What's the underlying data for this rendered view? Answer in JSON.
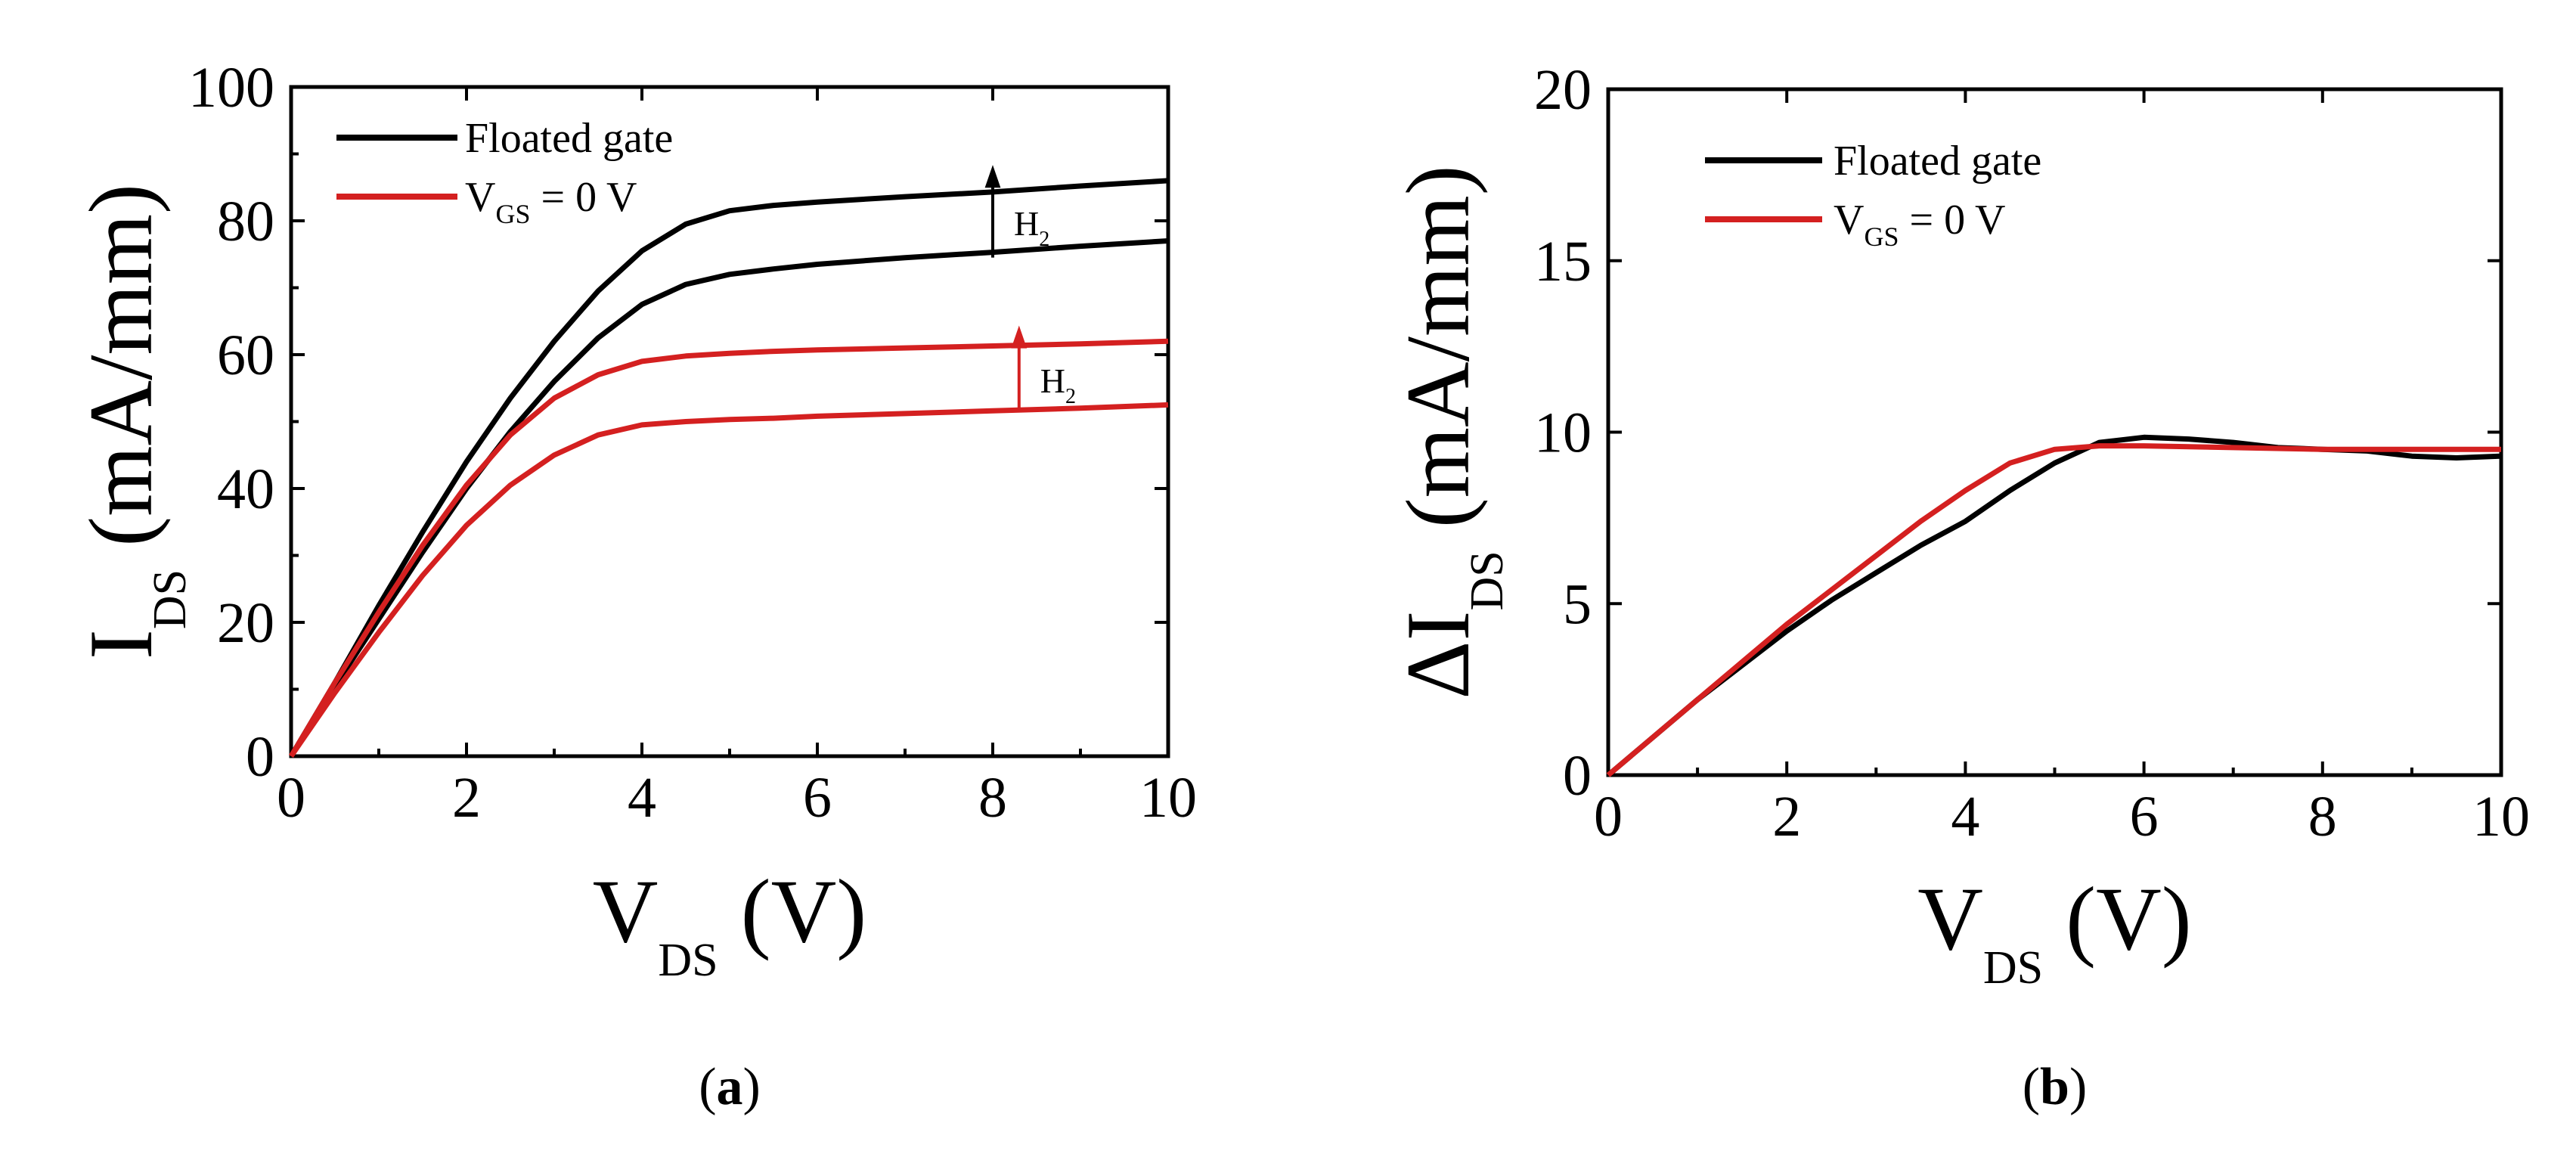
{
  "chart_data": [
    {
      "type": "line",
      "panel_label": {
        "open": "(",
        "letter": "a",
        "close": ")"
      },
      "xlabel": {
        "main": "V",
        "sub": "DS",
        "unit": " (V)"
      },
      "ylabel": {
        "main": "I",
        "sub": "DS",
        "unit": " (mA/mm)"
      },
      "xlim": [
        0,
        10
      ],
      "ylim": [
        0,
        100
      ],
      "xticks": [
        "0",
        "2",
        "4",
        "6",
        "8",
        "10"
      ],
      "yticks": [
        "0",
        "20",
        "40",
        "60",
        "80",
        "100"
      ],
      "grid": false,
      "legend": {
        "position": "top-left",
        "entries": [
          {
            "label": "Floated gate",
            "color": "#000000"
          },
          {
            "label_main": "V",
            "label_sub": "GS",
            "label_rest": " = 0 V",
            "color": "#d42020"
          }
        ]
      },
      "annotations": [
        {
          "text_main": "H",
          "text_sub": "2",
          "x": 8.0,
          "y_from": 74.5,
          "y_to": 88,
          "color": "#000000"
        },
        {
          "text_main": "H",
          "text_sub": "2",
          "x": 8.3,
          "y_from": 51.5,
          "y_to": 64,
          "color": "#d42020"
        }
      ],
      "series": [
        {
          "color": "#000000",
          "x": [
            0,
            0.5,
            1,
            1.5,
            2,
            2.5,
            3,
            3.5,
            4,
            4.5,
            5,
            5.5,
            6,
            7,
            8,
            9,
            10
          ],
          "y": [
            0,
            11,
            22.5,
            33.5,
            44,
            53.5,
            62,
            69.5,
            75.5,
            79.5,
            81.5,
            82.3,
            82.8,
            83.6,
            84.3,
            85.2,
            86
          ]
        },
        {
          "color": "#000000",
          "x": [
            0,
            0.5,
            1,
            1.5,
            2,
            2.5,
            3,
            3.5,
            4,
            4.5,
            5,
            5.5,
            6,
            7,
            8,
            9,
            10
          ],
          "y": [
            0,
            10.5,
            20.5,
            30.5,
            40,
            48.5,
            56,
            62.5,
            67.5,
            70.5,
            72,
            72.8,
            73.5,
            74.5,
            75.3,
            76.2,
            77
          ]
        },
        {
          "color": "#d42020",
          "x": [
            0,
            0.5,
            1,
            1.5,
            2,
            2.5,
            3,
            3.5,
            4,
            4.5,
            5,
            5.5,
            6,
            7,
            8,
            9,
            10
          ],
          "y": [
            0,
            11,
            21.5,
            31.5,
            40.5,
            48,
            53.5,
            57,
            59,
            59.8,
            60.2,
            60.5,
            60.7,
            61,
            61.3,
            61.6,
            62
          ]
        },
        {
          "color": "#d42020",
          "x": [
            0,
            0.5,
            1,
            1.5,
            2,
            2.5,
            3,
            3.5,
            4,
            4.5,
            5,
            5.5,
            6,
            7,
            8,
            9,
            10
          ],
          "y": [
            0,
            9.5,
            18.5,
            27,
            34.5,
            40.5,
            45,
            48,
            49.5,
            50,
            50.3,
            50.5,
            50.8,
            51.2,
            51.6,
            52,
            52.5
          ]
        }
      ]
    },
    {
      "type": "line",
      "panel_label": {
        "open": "(",
        "letter": "b",
        "close": ")"
      },
      "xlabel": {
        "main": "V",
        "sub": "DS",
        "unit": " (V)"
      },
      "ylabel": {
        "prefix": "ΔI",
        "sub": "DS",
        "unit": " (mA/mm)"
      },
      "xlim": [
        0,
        10
      ],
      "ylim": [
        0,
        20
      ],
      "xticks": [
        "0",
        "2",
        "4",
        "6",
        "8",
        "10"
      ],
      "yticks": [
        "0",
        "5",
        "10",
        "15",
        "20"
      ],
      "grid": false,
      "legend": {
        "position": "top-left",
        "entries": [
          {
            "label": "Floated gate",
            "color": "#000000"
          },
          {
            "label_main": "V",
            "label_sub": "GS",
            "label_rest": " = 0 V",
            "color": "#d42020"
          }
        ]
      },
      "series": [
        {
          "color": "#000000",
          "x": [
            0,
            0.5,
            1,
            1.5,
            2,
            2.5,
            3,
            3.5,
            4,
            4.5,
            5,
            5.5,
            6,
            6.5,
            7,
            7.5,
            8,
            8.5,
            9,
            9.5,
            10
          ],
          "y": [
            0,
            1.1,
            2.2,
            3.2,
            4.2,
            5.1,
            5.9,
            6.7,
            7.4,
            8.3,
            9.1,
            9.7,
            9.85,
            9.8,
            9.7,
            9.55,
            9.5,
            9.45,
            9.3,
            9.25,
            9.3
          ]
        },
        {
          "color": "#d42020",
          "x": [
            0,
            0.5,
            1,
            1.5,
            2,
            2.5,
            3,
            3.5,
            4,
            4.5,
            5,
            5.5,
            6,
            7,
            8,
            9,
            10
          ],
          "y": [
            0,
            1.1,
            2.2,
            3.3,
            4.4,
            5.4,
            6.4,
            7.4,
            8.3,
            9.1,
            9.5,
            9.6,
            9.6,
            9.55,
            9.5,
            9.5,
            9.5
          ]
        }
      ]
    }
  ]
}
